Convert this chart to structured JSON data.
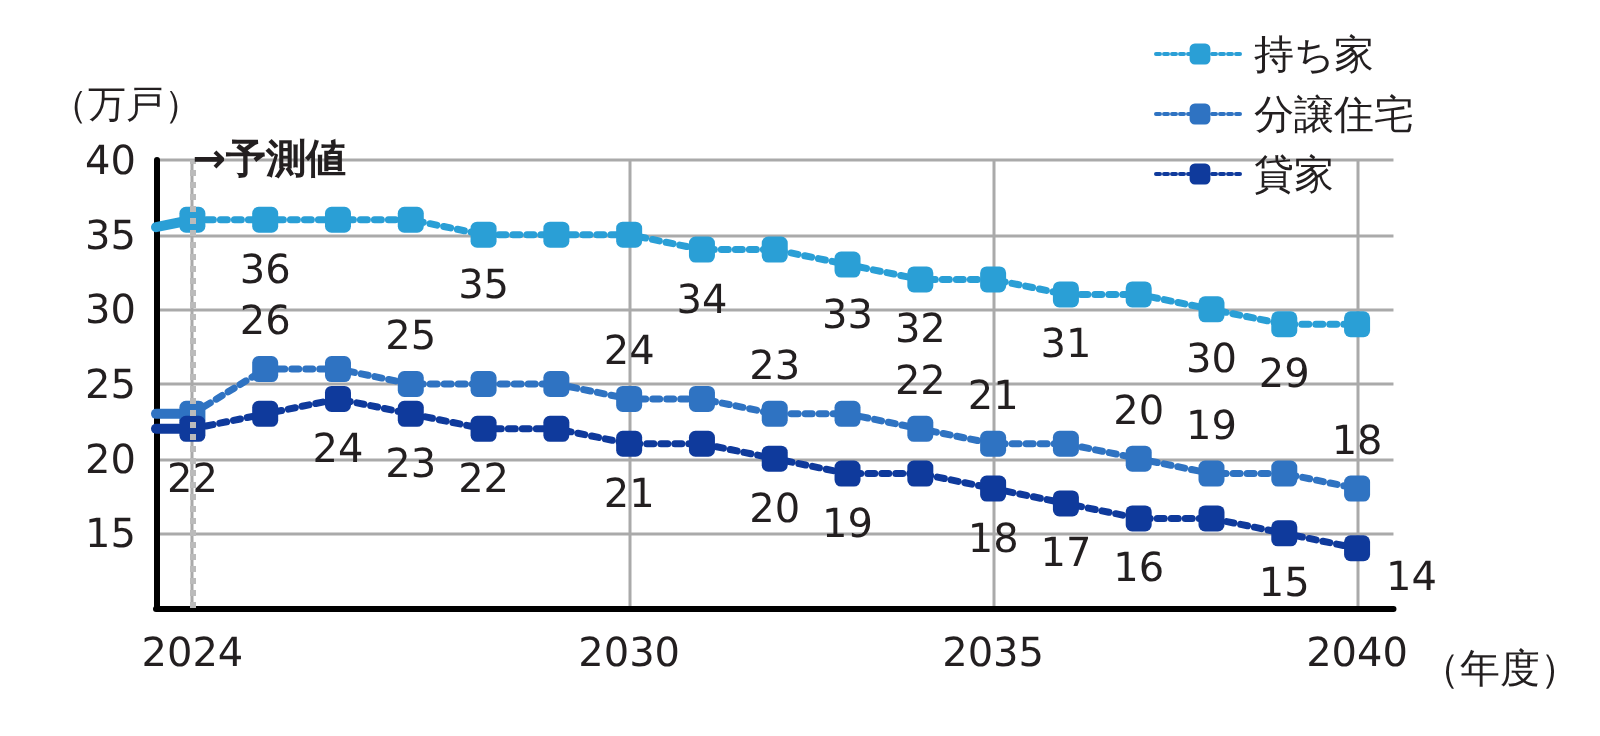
{
  "chart_data": {
    "type": "line",
    "ylabel": "（万戸）",
    "xlabel": "（年度）",
    "x": [
      2023.5,
      2024,
      2025,
      2026,
      2027,
      2028,
      2029,
      2030,
      2031,
      2032,
      2033,
      2034,
      2035,
      2036,
      2037,
      2038,
      2039,
      2040
    ],
    "series": [
      {
        "name": "持ち家",
        "color": "#2a9fd6",
        "values": [
          null,
          36,
          36,
          36,
          36,
          35,
          35,
          35,
          34,
          34,
          33,
          32,
          32,
          31,
          31,
          30,
          29,
          29
        ],
        "value_labels": [
          null,
          null,
          "36",
          null,
          null,
          "35",
          null,
          null,
          "34",
          null,
          "33",
          "32",
          null,
          "31",
          null,
          "30",
          "29",
          null
        ]
      },
      {
        "name": "分譲住宅",
        "color": "#2f73c2",
        "values": [
          null,
          23,
          26,
          26,
          25,
          25,
          25,
          24,
          24,
          23,
          23,
          22,
          21,
          21,
          20,
          19,
          19,
          18
        ],
        "value_labels": [
          null,
          null,
          "26",
          null,
          "25",
          null,
          null,
          "24",
          null,
          "23",
          null,
          "22",
          "21",
          null,
          "20",
          "19",
          null,
          "18"
        ]
      },
      {
        "name": "貸家",
        "color": "#0f3a9c",
        "values": [
          null,
          22,
          23,
          24,
          23,
          22,
          22,
          21,
          21,
          20,
          19,
          19,
          18,
          17,
          16,
          16,
          15,
          14
        ],
        "value_labels": [
          null,
          "22",
          null,
          "24",
          "23",
          "22",
          null,
          "21",
          null,
          "20",
          "19",
          null,
          "18",
          "17",
          "16",
          null,
          "15",
          "14"
        ]
      },
      {
        "color": "#2a9fd6",
        "values": [
          35.5,
          36,
          null,
          null,
          null,
          null,
          null,
          null,
          null,
          null,
          null,
          null,
          null,
          null,
          null,
          null,
          null,
          null
        ],
        "line_style": "solid",
        "marker": "none"
      },
      {
        "color": "#2f73c2",
        "values": [
          23,
          23,
          null,
          null,
          null,
          null,
          null,
          null,
          null,
          null,
          null,
          null,
          null,
          null,
          null,
          null,
          null,
          null
        ],
        "line_style": "solid",
        "marker": "none"
      },
      {
        "color": "#0f3a9c",
        "values": [
          22,
          22,
          null,
          null,
          null,
          null,
          null,
          null,
          null,
          null,
          null,
          null,
          null,
          null,
          null,
          null,
          null,
          null
        ],
        "line_style": "solid",
        "marker": "none"
      }
    ],
    "xlim": [
      2023.5,
      2040.5
    ],
    "xticks": [
      2024,
      2030,
      2035,
      2040
    ],
    "ylim": [
      10,
      40
    ],
    "yticks": [
      15,
      20,
      25,
      30,
      35,
      40
    ],
    "ref_lines": [
      {
        "axis": "x",
        "value": 2024,
        "label": "→予測値",
        "color": "#bbbbbb",
        "line_style": "dotted"
      }
    ],
    "grid": true,
    "legend": "top right",
    "marker": "square",
    "line_style": "dotted"
  }
}
